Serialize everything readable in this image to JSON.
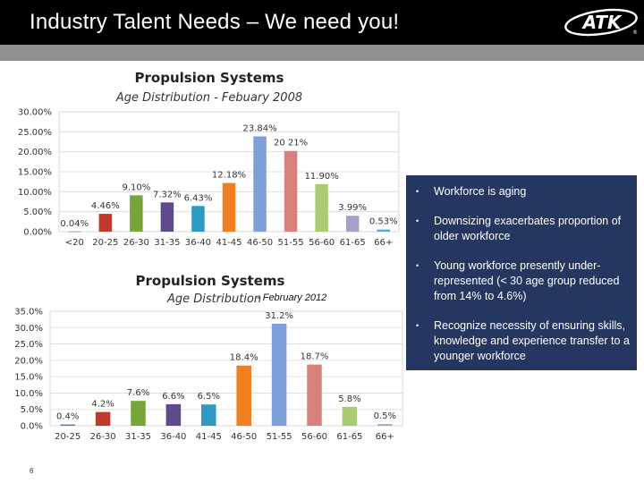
{
  "header": {
    "title": "Industry Talent Needs – We need you!",
    "logo_text": "ATK",
    "logo_mark": "®"
  },
  "chart_data": [
    {
      "type": "bar",
      "title": "Propulsion Systems",
      "subtitle": "Age Distribution - Febuary 2008",
      "categories": [
        "<20",
        "20-25",
        "26-30",
        "31-35",
        "36-40",
        "41-45",
        "46-50",
        "51-55",
        "56-60",
        "61-65",
        "66+"
      ],
      "values": [
        0.04,
        4.46,
        9.1,
        7.32,
        6.43,
        12.18,
        23.84,
        20.21,
        11.9,
        3.99,
        0.53
      ],
      "value_labels": [
        "0.04%",
        "4.46%",
        "9.10%",
        "7.32%",
        "6.43%",
        "12.18%",
        "23.84%",
        "20 21%",
        "11.90%",
        "3.99%",
        "0.53%"
      ],
      "yticks": [
        "0.00%",
        "5.00%",
        "10.00%",
        "15.00%",
        "20.00%",
        "25.00%",
        "30.00%"
      ],
      "ylim": [
        0,
        30
      ],
      "grid": true,
      "colors": [
        "#4f81bd",
        "#c0392b",
        "#77a53c",
        "#5f4a8b",
        "#2e9ac4",
        "#f07f20",
        "#7f9fdb",
        "#d9807c",
        "#a9cc73",
        "#a99fcf",
        "#58aad2"
      ]
    },
    {
      "type": "bar",
      "title": "Propulsion Systems",
      "subtitle": "Age Distribution",
      "note": "- February 2012",
      "categories": [
        "20-25",
        "26-30",
        "31-35",
        "36-40",
        "41-45",
        "46-50",
        "51-55",
        "56-60",
        "61-65",
        "66+"
      ],
      "values": [
        0.4,
        4.2,
        7.6,
        6.6,
        6.5,
        18.4,
        31.2,
        18.7,
        5.8,
        0.5
      ],
      "value_labels": [
        "0.4%",
        "4.2%",
        "7.6%",
        "6.6%",
        "6.5%",
        "18.4%",
        "31.2%",
        "18.7%",
        "5.8%",
        "0.5%"
      ],
      "yticks": [
        "0.0%",
        "5.0%",
        "10.0%",
        "15.0%",
        "20.0%",
        "25.0%",
        "30.0%",
        "35.0%"
      ],
      "ylim": [
        0,
        35
      ],
      "grid": true,
      "colors": [
        "#4f81bd",
        "#c0392b",
        "#77a53c",
        "#5f4a8b",
        "#2e9ac4",
        "#f07f20",
        "#7f9fdb",
        "#d9807c",
        "#a9cc73",
        "#a99fcf"
      ]
    }
  ],
  "info": {
    "bullet_glyph": "•",
    "bullets": [
      "Workforce is aging",
      "Downsizing exacerbates proportion of older workforce",
      "Young workforce presently under-represented (< 30 age group reduced from 14% to 4.6%)",
      "Recognize necessity of ensuring skills, knowledge and experience transfer to a younger workforce"
    ]
  },
  "footer": {
    "page_number": "6"
  }
}
